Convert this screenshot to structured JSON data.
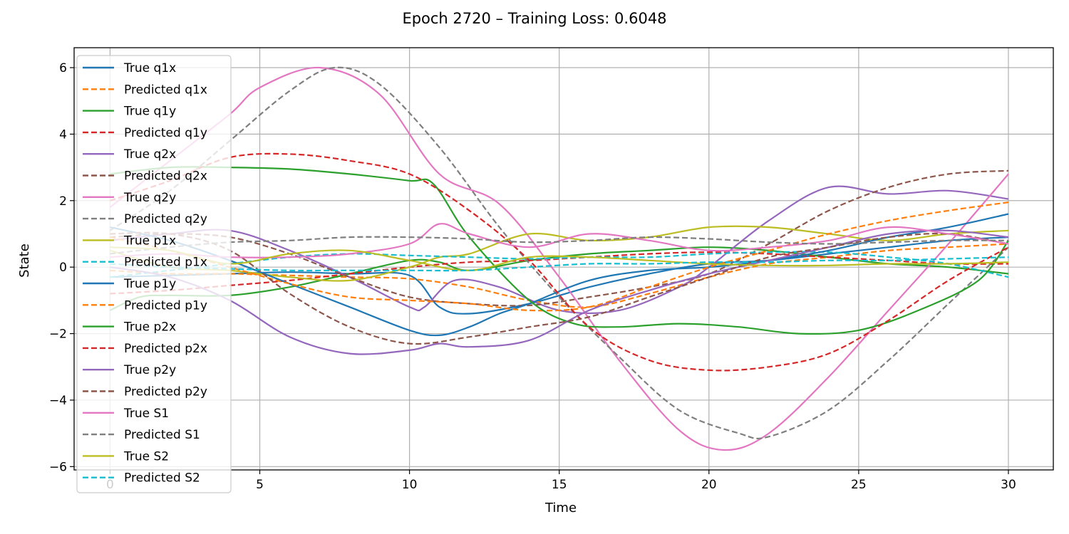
{
  "chart_data": {
    "type": "line",
    "title": "Epoch 2720 – Training Loss: 0.6048",
    "xlabel": "Time",
    "ylabel": "State",
    "xlim": [
      -1.2,
      31.5
    ],
    "ylim": [
      -6.1,
      6.6
    ],
    "x_ticks": [
      0,
      5,
      10,
      15,
      20,
      25,
      30
    ],
    "y_ticks": [
      -6,
      -4,
      -2,
      0,
      2,
      4,
      6
    ],
    "x_tick_labels": [
      "0",
      "5",
      "10",
      "15",
      "20",
      "25",
      "30"
    ],
    "y_tick_labels": [
      "−6",
      "−4",
      "−2",
      "0",
      "2",
      "4",
      "6"
    ],
    "grid": true,
    "legend_position": "upper-left",
    "series": [
      {
        "name": "True q1x",
        "color": "#1f77b4",
        "dash": "solid",
        "x": [
          0,
          2,
          4,
          6,
          8,
          10,
          11,
          12,
          14,
          16,
          18,
          20,
          22,
          24,
          26,
          28,
          30
        ],
        "y": [
          -0.3,
          -0.25,
          -0.2,
          -0.15,
          -0.2,
          -0.25,
          -1.2,
          -1.4,
          -1.1,
          -0.6,
          -0.2,
          0.1,
          0.2,
          0.4,
          0.6,
          0.8,
          0.9
        ]
      },
      {
        "name": "Predicted q1x",
        "color": "#ff7f0e",
        "dash": "dashed",
        "x": [
          0,
          2,
          4,
          6,
          8,
          10,
          12,
          14,
          16,
          18,
          20,
          22,
          24,
          26,
          28,
          30
        ],
        "y": [
          -0.1,
          -0.2,
          -0.2,
          -0.25,
          -0.3,
          -0.35,
          -0.6,
          -1.0,
          -1.2,
          -0.8,
          -0.3,
          0.1,
          0.3,
          0.5,
          0.6,
          0.7
        ]
      },
      {
        "name": "True q1y",
        "color": "#2ca02c",
        "dash": "solid",
        "x": [
          0,
          1,
          2,
          4,
          6,
          8,
          10,
          11,
          12,
          14,
          16,
          18,
          20,
          22,
          24,
          26,
          28,
          30
        ],
        "y": [
          -1.3,
          -0.9,
          -0.85,
          -0.85,
          -0.6,
          -0.2,
          0.2,
          0.15,
          -0.1,
          0.2,
          0.4,
          0.5,
          0.6,
          0.5,
          0.3,
          0.1,
          0.0,
          -0.2
        ]
      },
      {
        "name": "Predicted q1y",
        "color": "#d62728",
        "dash": "dashed",
        "x": [
          0,
          2,
          4,
          6,
          8,
          10,
          12,
          14,
          16,
          18,
          20,
          22,
          24,
          26,
          28,
          30
        ],
        "y": [
          -0.8,
          -0.7,
          -0.55,
          -0.4,
          -0.2,
          0.0,
          0.15,
          0.2,
          0.3,
          0.4,
          0.45,
          0.4,
          0.3,
          0.2,
          0.1,
          0.1
        ]
      },
      {
        "name": "True q2x",
        "color": "#9467bd",
        "dash": "solid",
        "x": [
          0,
          2,
          4,
          6,
          8,
          10,
          10.5,
          11.5,
          13,
          15,
          17,
          19,
          20,
          22,
          24,
          26,
          28,
          30
        ],
        "y": [
          0.8,
          1.0,
          1.1,
          0.5,
          -0.3,
          -1.2,
          -1.2,
          -0.4,
          -0.6,
          -1.3,
          -1.3,
          -0.6,
          0.0,
          1.4,
          2.4,
          2.2,
          2.3,
          2.05
        ]
      },
      {
        "name": "Predicted q2x",
        "color": "#8c564b",
        "dash": "dashed",
        "x": [
          0,
          2,
          4,
          6,
          8,
          10,
          12,
          14,
          16,
          18,
          20,
          22,
          24,
          26,
          28,
          30
        ],
        "y": [
          0.9,
          1.0,
          0.9,
          0.4,
          -0.3,
          -0.9,
          -1.1,
          -1.15,
          -0.9,
          -0.6,
          -0.2,
          0.7,
          1.7,
          2.4,
          2.8,
          2.9
        ]
      },
      {
        "name": "True q2y",
        "color": "#e377c2",
        "dash": "solid",
        "x": [
          0,
          2,
          4,
          5,
          7,
          9,
          11,
          13,
          15,
          17,
          19,
          20.5,
          22,
          24,
          26,
          28,
          30
        ],
        "y": [
          1.8,
          3.2,
          4.6,
          5.4,
          6.0,
          5.2,
          2.8,
          1.9,
          -0.3,
          -2.8,
          -4.9,
          -5.5,
          -5.0,
          -3.3,
          -1.3,
          0.7,
          2.8
        ]
      },
      {
        "name": "Predicted q2y",
        "color": "#7f7f7f",
        "dash": "dashed",
        "x": [
          0,
          2,
          4,
          6,
          7.5,
          9,
          11,
          13,
          15,
          17,
          19,
          21,
          22,
          24,
          26,
          28,
          30
        ],
        "y": [
          1.1,
          2.3,
          3.8,
          5.3,
          6.0,
          5.5,
          3.6,
          1.2,
          -0.9,
          -2.7,
          -4.3,
          -5.0,
          -5.1,
          -4.3,
          -2.8,
          -1.1,
          0.6
        ]
      },
      {
        "name": "True p1x",
        "color": "#bcbd22",
        "dash": "solid",
        "x": [
          0,
          2,
          4,
          6,
          8,
          10,
          11,
          12,
          14,
          16,
          18,
          20,
          22,
          24,
          26,
          28,
          30
        ],
        "y": [
          0.5,
          0.0,
          -0.1,
          -0.3,
          -0.4,
          0.0,
          0.3,
          0.4,
          1.0,
          0.8,
          0.9,
          1.2,
          1.2,
          1.0,
          0.8,
          1.0,
          1.1
        ]
      },
      {
        "name": "Predicted p1x",
        "color": "#17becf",
        "dash": "dashed",
        "x": [
          0,
          2,
          4,
          6,
          8,
          10,
          12,
          14,
          16,
          18,
          20,
          22,
          24,
          26,
          28,
          30
        ],
        "y": [
          -0.3,
          -0.1,
          0.1,
          0.3,
          0.4,
          0.35,
          0.3,
          0.25,
          0.3,
          0.3,
          0.4,
          0.45,
          0.45,
          0.3,
          0.1,
          -0.3
        ]
      },
      {
        "name": "True p1y",
        "color": "#1f77b4",
        "dash": "solid",
        "x": [
          0,
          2,
          4,
          6,
          8,
          10,
          11,
          12,
          13,
          14,
          16,
          18,
          20,
          22,
          24,
          26,
          28,
          30
        ],
        "y": [
          1.2,
          0.8,
          0.2,
          -0.5,
          -1.2,
          -1.9,
          -2.05,
          -1.8,
          -1.4,
          -1.1,
          -0.4,
          -0.1,
          0.0,
          0.2,
          0.5,
          0.9,
          1.2,
          1.6
        ]
      },
      {
        "name": "Predicted p1y",
        "color": "#ff7f0e",
        "dash": "dashed",
        "x": [
          0,
          2,
          4,
          6,
          8,
          10,
          12,
          14,
          16,
          18,
          20,
          22,
          24,
          26,
          28,
          30
        ],
        "y": [
          0.9,
          0.5,
          0.0,
          -0.5,
          -0.9,
          -1.0,
          -1.1,
          -1.3,
          -1.2,
          -0.6,
          0.0,
          0.5,
          1.0,
          1.4,
          1.7,
          1.95
        ]
      },
      {
        "name": "True p2x",
        "color": "#2ca02c",
        "dash": "solid",
        "x": [
          0,
          2,
          4,
          6,
          8,
          10,
          10.8,
          12,
          14,
          15.5,
          17,
          19,
          21,
          23,
          25,
          27,
          29,
          30
        ],
        "y": [
          2.8,
          3.0,
          3.0,
          2.95,
          2.8,
          2.6,
          2.5,
          0.9,
          -1.0,
          -1.7,
          -1.8,
          -1.7,
          -1.8,
          -2.0,
          -1.9,
          -1.3,
          -0.4,
          0.8
        ]
      },
      {
        "name": "Predicted p2x",
        "color": "#d62728",
        "dash": "dashed",
        "x": [
          0,
          2,
          4,
          6,
          8,
          10,
          12,
          14,
          16,
          18,
          20,
          22,
          24,
          26,
          28,
          30
        ],
        "y": [
          2.0,
          2.6,
          3.3,
          3.4,
          3.2,
          2.8,
          1.7,
          0.2,
          -1.8,
          -2.8,
          -3.1,
          -3.0,
          -2.6,
          -1.6,
          -0.4,
          0.6
        ]
      },
      {
        "name": "True p2y",
        "color": "#9467bd",
        "dash": "solid",
        "x": [
          0,
          2,
          4,
          6,
          8,
          10,
          11,
          12,
          14,
          16,
          18,
          20,
          22,
          24,
          26,
          28,
          30
        ],
        "y": [
          0.0,
          -0.3,
          -1.0,
          -2.1,
          -2.6,
          -2.5,
          -2.3,
          -2.4,
          -2.2,
          -1.3,
          -0.7,
          -0.2,
          0.2,
          0.6,
          1.0,
          1.1,
          0.9
        ]
      },
      {
        "name": "Predicted p2y",
        "color": "#8c564b",
        "dash": "dashed",
        "x": [
          0,
          2,
          4,
          6,
          8,
          10,
          12,
          14,
          16,
          18,
          20,
          22,
          24,
          26,
          28,
          30
        ],
        "y": [
          1.0,
          1.0,
          0.5,
          -0.8,
          -1.8,
          -2.3,
          -2.1,
          -1.8,
          -1.5,
          -0.9,
          -0.3,
          0.3,
          0.6,
          0.9,
          1.0,
          0.7
        ]
      },
      {
        "name": "True S1",
        "color": "#e377c2",
        "dash": "solid",
        "x": [
          0,
          2,
          4,
          6,
          8,
          10,
          11,
          12,
          14,
          16,
          18,
          20,
          22,
          24,
          26,
          28,
          30
        ],
        "y": [
          0.3,
          0.4,
          0.3,
          0.3,
          0.4,
          0.7,
          1.3,
          1.0,
          0.6,
          1.0,
          0.8,
          0.5,
          0.6,
          0.8,
          1.2,
          1.0,
          0.7
        ]
      },
      {
        "name": "Predicted S1",
        "color": "#7f7f7f",
        "dash": "dashed",
        "x": [
          0,
          2,
          4,
          6,
          8,
          10,
          12,
          14,
          16,
          18,
          20,
          22,
          24,
          26,
          28,
          30
        ],
        "y": [
          0.4,
          0.6,
          0.75,
          0.8,
          0.9,
          0.9,
          0.85,
          0.75,
          0.8,
          0.9,
          0.85,
          0.75,
          0.7,
          0.75,
          0.8,
          0.8
        ]
      },
      {
        "name": "True S2",
        "color": "#bcbd22",
        "dash": "solid",
        "x": [
          0,
          2,
          4,
          6,
          8,
          10,
          12,
          14,
          16,
          18,
          20,
          22,
          24,
          26,
          28,
          30
        ],
        "y": [
          0.6,
          0.5,
          0.1,
          0.4,
          0.5,
          0.2,
          -0.1,
          0.3,
          0.3,
          0.2,
          0.1,
          0.05,
          0.05,
          0.1,
          0.1,
          0.15
        ]
      },
      {
        "name": "Predicted S2",
        "color": "#17becf",
        "dash": "dashed",
        "x": [
          0,
          2,
          4,
          6,
          8,
          10,
          12,
          14,
          16,
          18,
          20,
          22,
          24,
          26,
          28,
          30
        ],
        "y": [
          0.1,
          0.0,
          -0.05,
          -0.1,
          -0.1,
          -0.1,
          -0.1,
          0.0,
          0.1,
          0.1,
          0.15,
          0.15,
          0.2,
          0.2,
          0.25,
          0.3
        ]
      }
    ]
  }
}
